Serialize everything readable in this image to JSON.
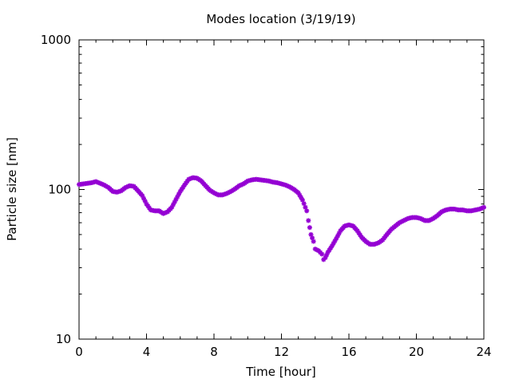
{
  "chart_data": {
    "type": "scatter",
    "title": "Modes location (3/19/19)",
    "xlabel": "Time [hour]",
    "ylabel": "Particle size [nm]",
    "xlim": [
      0,
      24
    ],
    "ylim": [
      10,
      1000
    ],
    "y_scale": "log",
    "grid": false,
    "xticks": [
      0,
      4,
      8,
      12,
      16,
      20,
      24
    ],
    "xtick_labels": [
      "0",
      "4",
      "8",
      "12",
      "16",
      "20",
      "24"
    ],
    "yticks": [
      10,
      100,
      1000
    ],
    "ytick_labels": [
      "10",
      "100",
      "1000"
    ],
    "marker_color": "#9400d3",
    "series": [
      {
        "x": [
          0,
          0.25,
          0.5,
          0.75,
          1,
          1.25,
          1.5,
          1.75,
          2,
          2.25,
          2.5,
          2.75,
          3,
          3.25,
          3.5,
          3.75,
          4,
          4.25,
          4.5,
          4.75,
          5,
          5.25,
          5.5,
          5.75,
          6,
          6.25,
          6.5,
          6.75,
          7,
          7.25,
          7.5,
          7.75,
          8,
          8.25,
          8.5,
          8.75,
          9,
          9.25,
          9.5,
          9.75,
          10,
          10.25,
          10.5,
          10.75,
          11,
          11.25,
          11.5,
          11.75,
          12,
          12.25,
          12.5,
          12.75,
          13,
          13.25,
          13.5,
          13.6,
          13.75,
          13.9,
          14,
          14.2,
          14.4,
          14.5,
          14.6,
          14.75,
          15,
          15.25,
          15.5,
          15.75,
          16,
          16.25,
          16.5,
          16.75,
          17,
          17.25,
          17.5,
          17.75,
          18,
          18.25,
          18.5,
          18.75,
          19,
          19.25,
          19.5,
          19.75,
          20,
          20.25,
          20.5,
          20.75,
          21,
          21.25,
          21.5,
          21.75,
          22,
          22.25,
          22.5,
          22.75,
          23,
          23.25,
          23.5,
          23.75,
          24
        ],
        "y": [
          108,
          109,
          110,
          111,
          113,
          110,
          107,
          103,
          97,
          96,
          98,
          103,
          106,
          105,
          98,
          91,
          80,
          73,
          72,
          72,
          69,
          71,
          76,
          86,
          97,
          107,
          117,
          120,
          119,
          114,
          106,
          99,
          95,
          92,
          92,
          94,
          97,
          101,
          106,
          109,
          114,
          116,
          117,
          116,
          115,
          114,
          112,
          111,
          109,
          107,
          104,
          100,
          95,
          85,
          72,
          62,
          50,
          45,
          40,
          39,
          37,
          34,
          35,
          38,
          42,
          47,
          53,
          57,
          58,
          57,
          53,
          48,
          45,
          43,
          43,
          44,
          46,
          50,
          54,
          57,
          60,
          62,
          64,
          65,
          65,
          64,
          62,
          62,
          64,
          67,
          71,
          73,
          74,
          74,
          73,
          73,
          72,
          72,
          73,
          74,
          76
        ]
      }
    ]
  }
}
